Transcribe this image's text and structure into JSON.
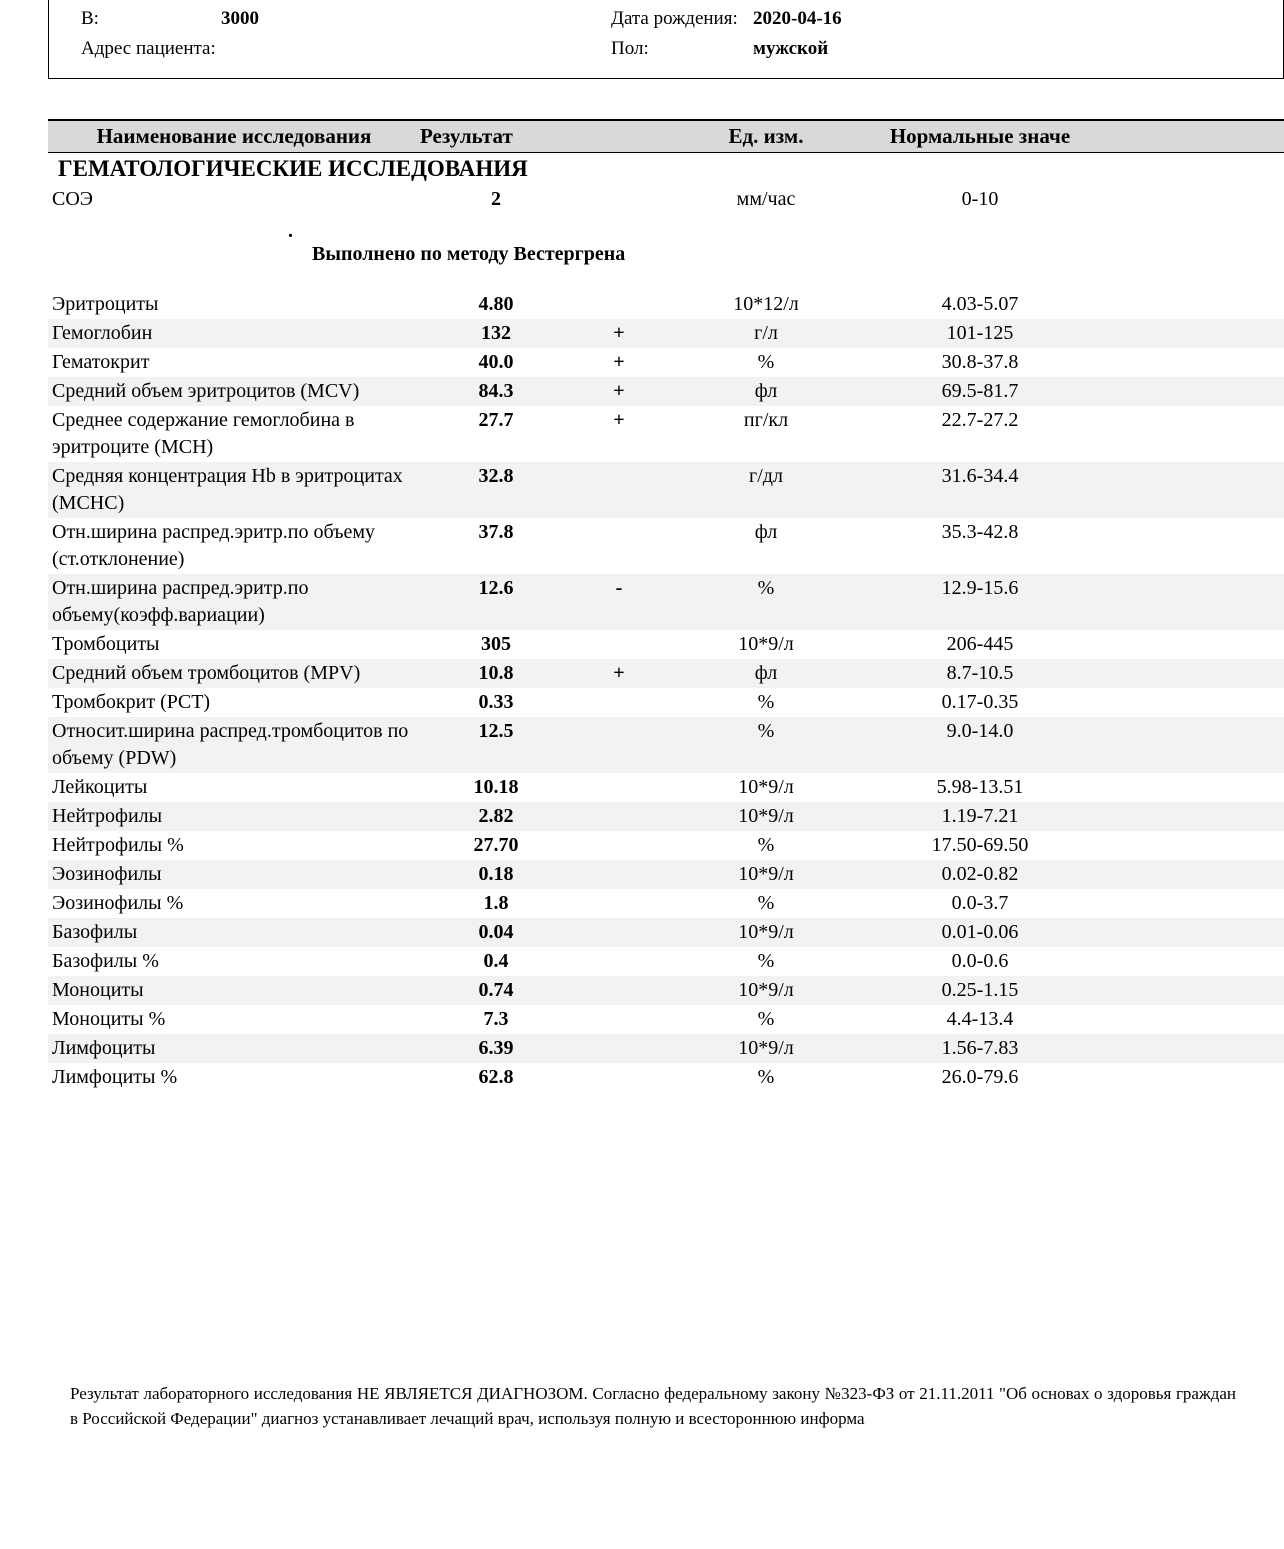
{
  "patient": {
    "b_label": "В:",
    "b_value": "3000",
    "dob_label": "Дата рождения:",
    "dob_value": "2020-04-16",
    "addr_label": "Адрес пациента:",
    "addr_value": "",
    "sex_label": "Пол:",
    "sex_value": "мужской"
  },
  "headers": {
    "name": "Наименование исследования",
    "result": "Результат",
    "unit": "Ед. изм.",
    "ref": "Нормальные значе"
  },
  "section_title": "ГЕМАТОЛОГИЧЕСКИЕ ИССЛЕДОВАНИЯ",
  "note": {
    "dot": ".",
    "text": "Выполнено по методу Вестергрена"
  },
  "top_row": {
    "name": "СОЭ",
    "result": "2",
    "flag": "",
    "unit": "мм/час",
    "ref": "0-10",
    "alt": false
  },
  "rows": [
    {
      "name": "Эритроциты",
      "result": "4.80",
      "flag": "",
      "unit": "10*12/л",
      "ref": "4.03-5.07",
      "alt": false
    },
    {
      "name": "Гемоглобин",
      "result": "132",
      "flag": "+",
      "unit": "г/л",
      "ref": "101-125",
      "alt": true
    },
    {
      "name": "Гематокрит",
      "result": "40.0",
      "flag": "+",
      "unit": "%",
      "ref": "30.8-37.8",
      "alt": false
    },
    {
      "name": "Средний объем эритроцитов (MCV)",
      "result": "84.3",
      "flag": "+",
      "unit": "фл",
      "ref": "69.5-81.7",
      "alt": true
    },
    {
      "name": "Среднее содержание гемоглобина в эритроците (MCH)",
      "result": "27.7",
      "flag": "+",
      "unit": "пг/кл",
      "ref": "22.7-27.2",
      "alt": false
    },
    {
      "name": "Средняя концентрация Hb в эритроцитах (MCHC)",
      "result": "32.8",
      "flag": "",
      "unit": "г/дл",
      "ref": "31.6-34.4",
      "alt": true
    },
    {
      "name": "Отн.ширина распред.эритр.по объему (ст.отклонение)",
      "result": "37.8",
      "flag": "",
      "unit": "фл",
      "ref": "35.3-42.8",
      "alt": false
    },
    {
      "name": "Отн.ширина распред.эритр.по объему(коэфф.вариации)",
      "result": "12.6",
      "flag": "-",
      "unit": "%",
      "ref": "12.9-15.6",
      "alt": true
    },
    {
      "name": "Тромбоциты",
      "result": "305",
      "flag": "",
      "unit": "10*9/л",
      "ref": "206-445",
      "alt": false
    },
    {
      "name": "Средний объем тромбоцитов (MPV)",
      "result": "10.8",
      "flag": "+",
      "unit": "фл",
      "ref": "8.7-10.5",
      "alt": true
    },
    {
      "name": "Тромбокрит (PCT)",
      "result": "0.33",
      "flag": "",
      "unit": "%",
      "ref": "0.17-0.35",
      "alt": false
    },
    {
      "name": "Относит.ширина распред.тромбоцитов по объему (PDW)",
      "result": "12.5",
      "flag": "",
      "unit": "%",
      "ref": "9.0-14.0",
      "alt": true
    },
    {
      "name": "Лейкоциты",
      "result": "10.18",
      "flag": "",
      "unit": "10*9/л",
      "ref": "5.98-13.51",
      "alt": false
    },
    {
      "name": "Нейтрофилы",
      "result": "2.82",
      "flag": "",
      "unit": "10*9/л",
      "ref": "1.19-7.21",
      "alt": true
    },
    {
      "name": "Нейтрофилы %",
      "result": "27.70",
      "flag": "",
      "unit": "%",
      "ref": "17.50-69.50",
      "alt": false
    },
    {
      "name": "Эозинофилы",
      "result": "0.18",
      "flag": "",
      "unit": "10*9/л",
      "ref": "0.02-0.82",
      "alt": true
    },
    {
      "name": "Эозинофилы %",
      "result": "1.8",
      "flag": "",
      "unit": "%",
      "ref": "0.0-3.7",
      "alt": false
    },
    {
      "name": "Базофилы",
      "result": "0.04",
      "flag": "",
      "unit": "10*9/л",
      "ref": "0.01-0.06",
      "alt": true
    },
    {
      "name": "Базофилы %",
      "result": "0.4",
      "flag": "",
      "unit": "%",
      "ref": "0.0-0.6",
      "alt": false
    },
    {
      "name": "Моноциты",
      "result": "0.74",
      "flag": "",
      "unit": "10*9/л",
      "ref": "0.25-1.15",
      "alt": true
    },
    {
      "name": "Моноциты %",
      "result": "7.3",
      "flag": "",
      "unit": "%",
      "ref": "4.4-13.4",
      "alt": false
    },
    {
      "name": "Лимфоциты",
      "result": "6.39",
      "flag": "",
      "unit": "10*9/л",
      "ref": "1.56-7.83",
      "alt": true
    },
    {
      "name": "Лимфоциты %",
      "result": "62.8",
      "flag": "",
      "unit": "%",
      "ref": "26.0-79.6",
      "alt": false
    }
  ],
  "footer": "Результат лабораторного исследования НЕ ЯВЛЯЕТСЯ ДИАГНОЗОМ. Согласно федеральному закону №323-ФЗ от 21.11.2011 \"Об основах о здоровья граждан в Российской Федерации\" диагноз устанавливает лечащий врач, используя полную и всестороннюю информа"
}
